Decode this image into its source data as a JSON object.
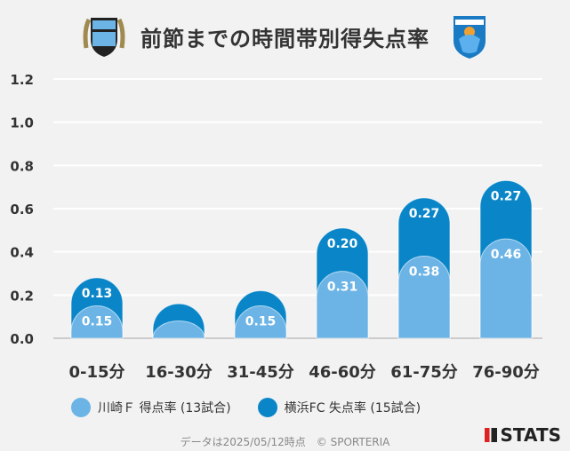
{
  "title": "前節までの時間帯別得失点率",
  "chart_data": {
    "type": "bar",
    "stacked": true,
    "categories": [
      "0-15分",
      "16-30分",
      "31-45分",
      "46-60分",
      "61-75分",
      "76-90分"
    ],
    "series": [
      {
        "name": "川崎Ｆ 得点率 (13試合)",
        "color": "#6cb4e6",
        "values": [
          0.15,
          0.08,
          0.15,
          0.31,
          0.38,
          0.46
        ],
        "labels": [
          "0.15",
          "",
          "0.15",
          "0.31",
          "0.38",
          "0.46"
        ]
      },
      {
        "name": "横浜FC 失点率 (15試合)",
        "color": "#0a86c8",
        "values": [
          0.13,
          0.08,
          0.07,
          0.2,
          0.27,
          0.27
        ],
        "labels": [
          "0.13",
          "",
          "",
          "0.20",
          "0.27",
          "0.27"
        ]
      }
    ],
    "ylim": [
      0,
      1.2
    ],
    "yticks": [
      "0.0",
      "0.2",
      "0.4",
      "0.6",
      "0.8",
      "1.0",
      "1.2"
    ],
    "grid": true,
    "legend": "bottom"
  },
  "logos": {
    "home": "KAWASAKI FRONTALE",
    "away": "YOKOHAMA FC"
  },
  "footer": "データは2025/05/12時点　© SPORTERIA",
  "brand": "STATS"
}
